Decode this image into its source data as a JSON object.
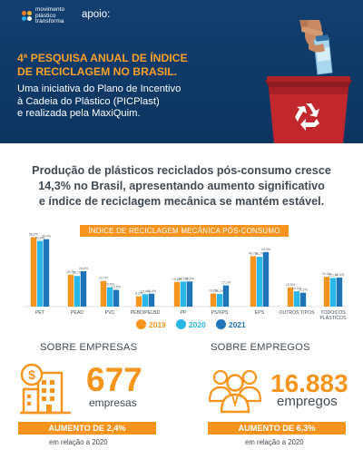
{
  "header": {
    "logo": {
      "line1": "movimento",
      "line2": "plástico",
      "line3": "transforma"
    },
    "apoio": "apoio:",
    "title_line1": "4ª PESQUISA ANUAL DE ÍNDICE",
    "title_line2": "DE RECICLAGEM NO BRASIL.",
    "subtitle_line1": "Uma iniciativa do Plano de Incentivo",
    "subtitle_line2": "à Cadeia do Plástico (PICPlast)",
    "subtitle_line3": "e realizada pela MaxiQuim."
  },
  "headline": {
    "line1": "Produção de plásticos reciclados pós-consumo cresce",
    "line2": "14,3% no Brasil, apresentando aumento significativo",
    "line3": "e índice de reciclagem mecânica se mantém estável."
  },
  "chart_data": {
    "type": "bar",
    "title": "ÍNDICE DE RECICLAGEM MECÂNICA PÓS-CONSUMO",
    "categories": [
      "PET",
      "PEAD",
      "PVC",
      "PEBD/PELBD",
      "PP",
      "PS/XPS",
      "EPS",
      "OUTROS TIPOS",
      "TODOS OS PLÁSTICOS"
    ],
    "series": [
      {
        "name": "2019",
        "color": "#f7941d",
        "values": [
          56.0,
          25.7,
          20.7,
          8.3,
          19.8,
          10.6,
          40.7,
          15.5,
          24.0
        ],
        "labels": [
          "56,0%",
          "25,7%",
          "20,7%",
          "8,3%",
          "19,8%",
          "10,6%",
          "40,7%",
          "15,5%",
          "24,0%"
        ]
      },
      {
        "name": "2020",
        "color": "#29b6e8",
        "values": [
          53.0,
          24.7,
          15.6,
          10.0,
          20.2,
          10.2,
          40.2,
          12.3,
          23.1
        ],
        "labels": [
          "53,0%",
          "24,7%",
          "15,6%",
          "10,0%",
          "20,2%",
          "10,2%",
          "40,2%",
          "12,3%",
          "23,1%"
        ]
      },
      {
        "name": "2021",
        "color": "#1f74b9",
        "values": [
          54.4,
          28.6,
          13.5,
          10.4,
          20.3,
          17.1,
          44.0,
          11.2,
          23.4
        ],
        "labels": [
          "54,4%",
          "28,6%",
          "13,5%",
          "10,4%",
          "20,3%",
          "17,1%",
          "44,0%",
          "11,2%",
          "23,4%"
        ]
      }
    ],
    "ylim": [
      0,
      60
    ],
    "grid": false,
    "legend": "bottom"
  },
  "stats": {
    "empresas": {
      "section_title": "SOBRE EMPRESAS",
      "number": "677",
      "unit": "empresas",
      "increase": "AUMENTO DE 2,4%",
      "relation": "em relação a 2020",
      "icon": "building-dollar-icon"
    },
    "empregos": {
      "section_title": "SOBRE EMPREGOS",
      "number": "16.883",
      "unit": "empregos",
      "increase": "AUMENTO DE 6,3%",
      "relation": "em relação a 2020",
      "icon": "people-group-icon"
    }
  },
  "colors": {
    "navy": "#0f3a68",
    "orange": "#f7941d",
    "light_blue": "#29b6e8",
    "blue": "#1f74b9",
    "text_gray": "#424c55"
  }
}
